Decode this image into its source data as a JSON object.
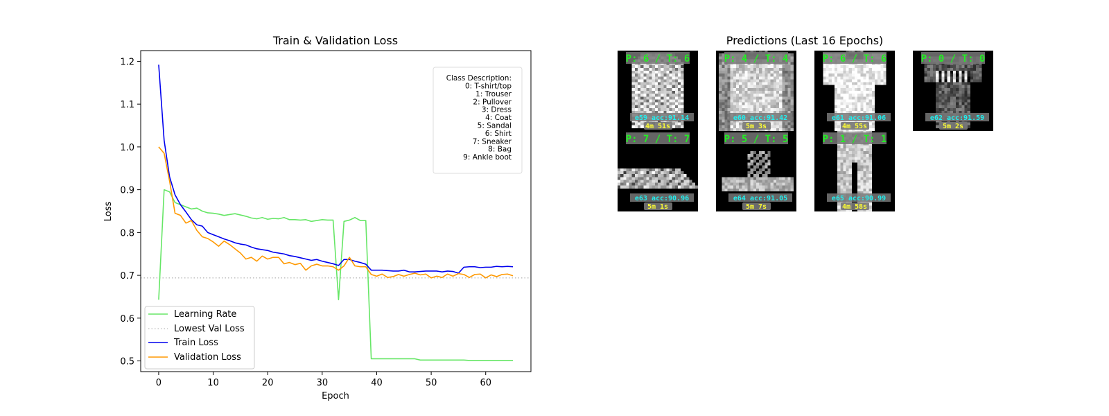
{
  "chart_data": [
    {
      "type": "line",
      "title": "Train & Validation Loss",
      "xlabel": "Epoch",
      "ylabel": "Loss",
      "xlim": [
        -3.3,
        68.3
      ],
      "ylim": [
        0.475,
        1.225
      ],
      "x_ticks": [
        0,
        10,
        20,
        30,
        40,
        50,
        60
      ],
      "y_ticks": [
        0.5,
        0.6,
        0.7,
        0.8,
        0.9,
        1.0,
        1.1,
        1.2
      ],
      "grid": false,
      "legend_position": "lower-left",
      "series": [
        {
          "name": "Learning Rate",
          "color": "#66e666",
          "style": "solid",
          "values": [
            0.643,
            0.9,
            0.895,
            0.87,
            0.865,
            0.86,
            0.855,
            0.857,
            0.85,
            0.846,
            0.845,
            0.843,
            0.84,
            0.842,
            0.844,
            0.841,
            0.838,
            0.834,
            0.832,
            0.835,
            0.831,
            0.833,
            0.832,
            0.835,
            0.83,
            0.83,
            0.829,
            0.83,
            0.826,
            0.828,
            0.83,
            0.829,
            0.829,
            0.643,
            0.826,
            0.829,
            0.835,
            0.828,
            0.828,
            0.505,
            0.505,
            0.505,
            0.505,
            0.505,
            0.505,
            0.505,
            0.505,
            0.505,
            0.502,
            0.502,
            0.502,
            0.502,
            0.502,
            0.502,
            0.502,
            0.502,
            0.502,
            0.501,
            0.501,
            0.501,
            0.501,
            0.501,
            0.501,
            0.501,
            0.501,
            0.501
          ]
        },
        {
          "name": "Lowest Val Loss",
          "color": "#bbbbbb",
          "style": "dotted",
          "value": 0.694
        },
        {
          "name": "Train Loss",
          "color": "#0000ee",
          "style": "solid",
          "values": [
            1.192,
            1.015,
            0.93,
            0.888,
            0.865,
            0.848,
            0.83,
            0.818,
            0.815,
            0.8,
            0.795,
            0.79,
            0.785,
            0.781,
            0.776,
            0.773,
            0.771,
            0.766,
            0.762,
            0.76,
            0.758,
            0.754,
            0.752,
            0.75,
            0.746,
            0.744,
            0.741,
            0.738,
            0.735,
            0.737,
            0.733,
            0.73,
            0.727,
            0.723,
            0.737,
            0.737,
            0.733,
            0.73,
            0.726,
            0.712,
            0.712,
            0.712,
            0.711,
            0.71,
            0.71,
            0.712,
            0.708,
            0.708,
            0.709,
            0.71,
            0.71,
            0.71,
            0.708,
            0.71,
            0.709,
            0.705,
            0.719,
            0.72,
            0.72,
            0.718,
            0.719,
            0.719,
            0.721,
            0.72,
            0.721,
            0.72
          ]
        },
        {
          "name": "Validation Loss",
          "color": "#ff9900",
          "style": "solid",
          "values": [
            1.0,
            0.985,
            0.92,
            0.845,
            0.84,
            0.822,
            0.828,
            0.805,
            0.79,
            0.786,
            0.778,
            0.768,
            0.78,
            0.772,
            0.762,
            0.752,
            0.738,
            0.742,
            0.733,
            0.745,
            0.738,
            0.742,
            0.742,
            0.727,
            0.73,
            0.725,
            0.728,
            0.712,
            0.722,
            0.726,
            0.722,
            0.722,
            0.72,
            0.712,
            0.722,
            0.742,
            0.722,
            0.72,
            0.72,
            0.702,
            0.698,
            0.703,
            0.695,
            0.697,
            0.702,
            0.698,
            0.702,
            0.705,
            0.701,
            0.703,
            0.694,
            0.698,
            0.695,
            0.703,
            0.698,
            0.704,
            0.702,
            0.695,
            0.702,
            0.703,
            0.694,
            0.701,
            0.697,
            0.702,
            0.703,
            0.699
          ]
        }
      ],
      "annotation": {
        "heading": "Class Description:",
        "lines": [
          "0: T-shirt/top",
          "1: Trouser",
          "2: Pullover",
          "3: Dress",
          "4: Coat",
          "5: Sandal",
          "6: Shirt",
          "7: Sneaker",
          "8: Bag",
          "9: Ankle boot"
        ],
        "placement": "top-right"
      }
    },
    {
      "type": "image-grid",
      "title": "Predictions (Last 16 Epochs)",
      "tiles": [
        {
          "label": "P: 6 / T: 6",
          "stats": "e59 acc:91.14",
          "time": "4m 51s",
          "item": "shirt"
        },
        {
          "label": "P: 4 / T: 4",
          "stats": "e60 acc:91.42",
          "time": "5m 3s",
          "item": "coat"
        },
        {
          "label": "P: 6 / T: 6",
          "stats": "e61 acc:91.06",
          "time": "4m 55s",
          "item": "shirt-white"
        },
        {
          "label": "P: 0 / T: 0",
          "stats": "e62 acc:91.59",
          "time": "5m 2s",
          "item": "tshirt-dark"
        },
        {
          "label": "P: 7 / T: 7",
          "stats": "e63 acc:90.96",
          "time": "5m 1s",
          "item": "sneaker"
        },
        {
          "label": "P: 5 / T: 5",
          "stats": "e64 acc:91.05",
          "time": "5m 7s",
          "item": "sandal"
        },
        {
          "label": "P: 1 / T: 1",
          "stats": "e65 acc:90.99",
          "time": "4m 58s",
          "item": "trouser"
        }
      ]
    }
  ]
}
